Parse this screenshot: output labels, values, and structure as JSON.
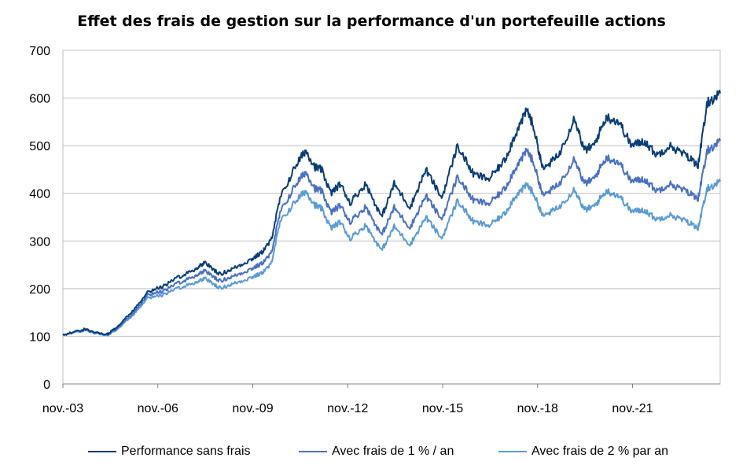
{
  "chart_data": {
    "type": "line",
    "title": "Effet des frais de gestion sur la performance d'un portefeuille actions",
    "xlabel": "",
    "ylabel": "",
    "x_tick_labels": [
      "nov.-03",
      "nov.-06",
      "nov.-09",
      "nov.-12",
      "nov.-15",
      "nov.-18",
      "nov.-21"
    ],
    "x_start_year": 2003.83,
    "x_end_year": 2024.6,
    "ylim": [
      0,
      700
    ],
    "y_ticks": [
      0,
      100,
      200,
      300,
      400,
      500,
      600,
      700
    ],
    "grid": "horizontal",
    "legend_position": "bottom",
    "series": [
      {
        "name": "Performance sans frais",
        "color": "#0b3d78",
        "x": [
          2003.83,
          2004.5,
          2005.2,
          2005.5,
          2006.0,
          2006.5,
          2007.0,
          2007.5,
          2008.0,
          2008.3,
          2008.8,
          2009.3,
          2009.8,
          2010.1,
          2010.4,
          2010.7,
          2011.2,
          2011.5,
          2011.8,
          2012.0,
          2012.3,
          2012.6,
          2012.9,
          2013.4,
          2013.9,
          2014.3,
          2014.8,
          2015.3,
          2015.8,
          2016.3,
          2016.8,
          2017.3,
          2017.8,
          2018.1,
          2018.5,
          2018.7,
          2019.0,
          2019.5,
          2020.0,
          2020.3,
          2020.6,
          2021.0,
          2021.4,
          2021.8,
          2022.2,
          2022.6,
          2023.0,
          2023.5,
          2023.9,
          2024.2,
          2024.6
        ],
        "values": [
          103,
          115,
          103,
          118,
          150,
          193,
          205,
          225,
          240,
          255,
          230,
          245,
          262,
          275,
          300,
          390,
          460,
          490,
          455,
          450,
          400,
          420,
          380,
          420,
          350,
          420,
          370,
          450,
          390,
          500,
          440,
          430,
          470,
          520,
          575,
          540,
          450,
          480,
          560,
          490,
          500,
          560,
          550,
          500,
          510,
          480,
          500,
          480,
          460,
          590,
          610
        ]
      },
      {
        "name": "Avec frais de 1 % / an",
        "color": "#4a70c4",
        "x": [
          2003.83,
          2004.5,
          2005.2,
          2005.5,
          2006.0,
          2006.5,
          2007.0,
          2007.5,
          2008.0,
          2008.3,
          2008.8,
          2009.3,
          2009.8,
          2010.1,
          2010.4,
          2010.7,
          2011.2,
          2011.5,
          2011.8,
          2012.0,
          2012.3,
          2012.6,
          2012.9,
          2013.4,
          2013.9,
          2014.3,
          2014.8,
          2015.3,
          2015.8,
          2016.3,
          2016.8,
          2017.3,
          2017.8,
          2018.1,
          2018.5,
          2018.7,
          2019.0,
          2019.5,
          2020.0,
          2020.3,
          2020.6,
          2021.0,
          2021.4,
          2021.8,
          2022.2,
          2022.6,
          2023.0,
          2023.5,
          2023.9,
          2024.2,
          2024.6
        ],
        "values": [
          103,
          113,
          102,
          115,
          145,
          187,
          195,
          213,
          226,
          238,
          216,
          228,
          242,
          252,
          272,
          360,
          420,
          445,
          410,
          405,
          360,
          375,
          340,
          372,
          312,
          370,
          328,
          395,
          345,
          435,
          385,
          378,
          410,
          450,
          490,
          465,
          395,
          418,
          475,
          420,
          430,
          475,
          465,
          425,
          430,
          405,
          420,
          405,
          390,
          490,
          510
        ]
      },
      {
        "name": "Avec frais de 2 % par an",
        "color": "#5b9bd5",
        "x": [
          2003.83,
          2004.5,
          2005.2,
          2005.5,
          2006.0,
          2006.5,
          2007.0,
          2007.5,
          2008.0,
          2008.3,
          2008.8,
          2009.3,
          2009.8,
          2010.1,
          2010.4,
          2010.7,
          2011.2,
          2011.5,
          2011.8,
          2012.0,
          2012.3,
          2012.6,
          2012.9,
          2013.4,
          2013.9,
          2014.3,
          2014.8,
          2015.3,
          2015.8,
          2016.3,
          2016.8,
          2017.3,
          2017.8,
          2018.1,
          2018.5,
          2018.7,
          2019.0,
          2019.5,
          2020.0,
          2020.3,
          2020.6,
          2021.0,
          2021.4,
          2021.8,
          2022.2,
          2022.6,
          2023.0,
          2023.5,
          2023.9,
          2024.2,
          2024.6
        ],
        "values": [
          103,
          112,
          101,
          113,
          141,
          181,
          187,
          202,
          212,
          222,
          201,
          212,
          224,
          232,
          250,
          340,
          385,
          405,
          375,
          368,
          327,
          340,
          305,
          333,
          280,
          330,
          292,
          350,
          305,
          385,
          340,
          332,
          358,
          392,
          418,
          400,
          352,
          370,
          410,
          365,
          372,
          405,
          395,
          362,
          365,
          345,
          355,
          342,
          328,
          410,
          425
        ]
      }
    ]
  }
}
